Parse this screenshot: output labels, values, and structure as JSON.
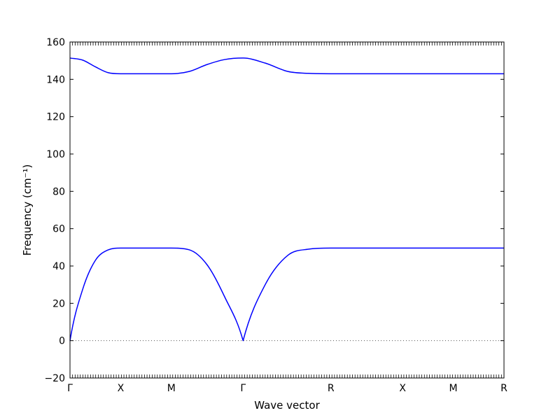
{
  "chart_data": {
    "type": "line",
    "title": "",
    "xlabel": "Wave vector",
    "ylabel": "Frequency (cm⁻¹)",
    "ylim": [
      -20,
      160
    ],
    "yticks": [
      -20,
      0,
      20,
      40,
      60,
      80,
      100,
      120,
      140,
      160
    ],
    "grid": false,
    "legend": "none",
    "xticks": [
      {
        "label": "Γ",
        "pos": 0
      },
      {
        "label": "X",
        "pos": 1
      },
      {
        "label": "M",
        "pos": 2
      },
      {
        "label": "Γ",
        "pos": 3.4142
      },
      {
        "label": "R",
        "pos": 5.1463
      },
      {
        "label": "X",
        "pos": 6.5605
      },
      {
        "label": "M",
        "pos": 7.5605
      },
      {
        "label": "R",
        "pos": 8.5605
      }
    ],
    "segments": [
      {
        "from": "Γ",
        "to": "X"
      },
      {
        "from": "X",
        "to": "M"
      },
      {
        "from": "M",
        "to": "Γ"
      },
      {
        "from": "Γ",
        "to": "R"
      },
      {
        "from": "R",
        "to": "X"
      },
      {
        "from": "X",
        "to": "M"
      },
      {
        "from": "M",
        "to": "R"
      }
    ],
    "series": [
      {
        "color": "#0000ff",
        "x": [
          0,
          0.25,
          0.5,
          0.75,
          1,
          1.5,
          2,
          2.35,
          2.7,
          3.05,
          3.4142,
          3.85,
          4.3,
          4.7,
          5.1463,
          5.85,
          6.5605,
          7.06,
          7.5605,
          8.06,
          8.5605
        ],
        "values": [
          0,
          27.5,
          43,
          48.6,
          49.6,
          49.6,
          49.6,
          48.7,
          40.8,
          23.5,
          0,
          30,
          45.8,
          49,
          49.6,
          49.6,
          49.6,
          49.6,
          49.6,
          49.6,
          49.6
        ]
      },
      {
        "color": "#0000ff",
        "x": [
          0,
          0.25,
          0.5,
          0.75,
          1,
          1.5,
          2,
          2.35,
          2.7,
          3.05,
          3.4142,
          3.85,
          4.3,
          4.7,
          5.1463,
          5.85,
          6.5605,
          7.06,
          7.5605,
          8.06,
          8.5605
        ],
        "values": [
          151.4,
          150.3,
          146.7,
          143.6,
          143,
          143,
          143,
          144.2,
          147.9,
          150.6,
          151.4,
          148.7,
          144.2,
          143.2,
          143,
          143,
          143,
          143,
          143,
          143,
          143
        ]
      }
    ],
    "reference_line": {
      "y": 0,
      "style": "dotted",
      "color": "#555555"
    }
  }
}
